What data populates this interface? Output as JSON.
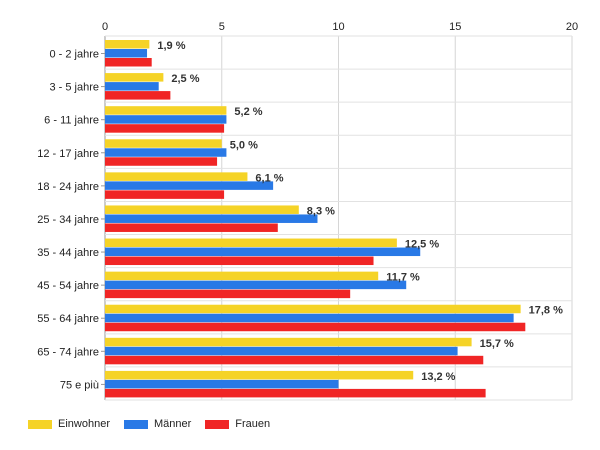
{
  "chart_data": {
    "type": "bar",
    "orientation": "horizontal",
    "categories": [
      "0 - 2 jahre",
      "3 - 5 jahre",
      "6 - 11 jahre",
      "12 - 17 jahre",
      "18 - 24 jahre",
      "25 - 34 jahre",
      "35 - 44 jahre",
      "45 - 54 jahre",
      "55 - 64 jahre",
      "65 - 74 jahre",
      "75 e più"
    ],
    "series": [
      {
        "name": "Einwohner",
        "color": "#f5d327",
        "values": [
          1.9,
          2.5,
          5.2,
          5.0,
          6.1,
          8.3,
          12.5,
          11.7,
          17.8,
          15.7,
          13.2
        ]
      },
      {
        "name": "Männer",
        "color": "#2979e6",
        "values": [
          1.8,
          2.3,
          5.2,
          5.2,
          7.2,
          9.1,
          13.5,
          12.9,
          17.5,
          15.1,
          10.0
        ]
      },
      {
        "name": "Frauen",
        "color": "#f02525",
        "values": [
          2.0,
          2.8,
          5.1,
          4.8,
          5.1,
          7.4,
          11.5,
          10.5,
          18.0,
          16.2,
          16.3
        ]
      }
    ],
    "data_labels": [
      "1,9 %",
      "2,5 %",
      "5,2 %",
      "5,0 %",
      "6,1 %",
      "8,3 %",
      "12,5 %",
      "11,7 %",
      "17,8 %",
      "15,7 %",
      "13,2 %"
    ],
    "xlim": [
      0,
      20
    ],
    "xticks": [
      0,
      5,
      10,
      15,
      20
    ],
    "x_axis_position": "top",
    "grid": true,
    "legend_position": "bottom-left"
  }
}
